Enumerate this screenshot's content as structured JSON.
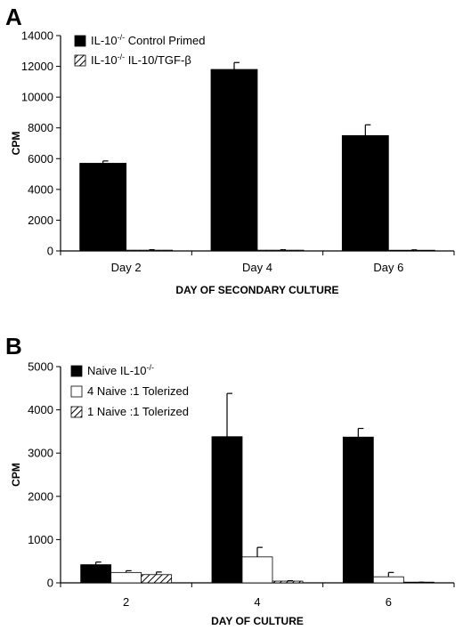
{
  "chart_data": [
    {
      "panel": "A",
      "type": "bar",
      "categories": [
        "Day 2",
        "Day 4",
        "Day 6"
      ],
      "series": [
        {
          "name": "IL-10-/- Control Primed",
          "label_main": "IL-10",
          "label_sup": "-/-",
          "label_rest": " Control Primed",
          "values": [
            5700,
            11800,
            7500
          ],
          "errors": [
            150,
            450,
            700
          ],
          "fill": "solid"
        },
        {
          "name": "IL-10-/- IL-10/TGF-β",
          "label_main": "IL-10",
          "label_sup": "-/-",
          "label_rest": "  IL-10/TGF-β",
          "values": [
            50,
            50,
            40
          ],
          "errors": [
            30,
            30,
            30
          ],
          "fill": "hatched"
        }
      ],
      "ylabel": "CPM",
      "xlabel": "DAY OF SECONDARY CULTURE",
      "ylim": [
        0,
        14000
      ],
      "yticks": [
        0,
        2000,
        4000,
        6000,
        8000,
        10000,
        12000,
        14000
      ],
      "grid": false,
      "legend": "top-left"
    },
    {
      "panel": "B",
      "type": "bar",
      "categories": [
        "2",
        "4",
        "6"
      ],
      "series": [
        {
          "name": "Naive IL-10-/-",
          "label_main": "Naive IL-10",
          "label_sup": "-/-",
          "label_rest": "",
          "values": [
            420,
            3380,
            3370
          ],
          "errors": [
            60,
            1000,
            200
          ],
          "fill": "solid"
        },
        {
          "name": "4 Naive :1 Tolerized",
          "label_main": "4 Naive :1 Tolerized",
          "label_sup": "",
          "label_rest": "",
          "values": [
            240,
            600,
            140
          ],
          "errors": [
            40,
            220,
            100
          ],
          "fill": "open"
        },
        {
          "name": "1 Naive :1 Tolerized",
          "label_main": "1 Naive :1 Tolerized",
          "label_sup": "",
          "label_rest": "",
          "values": [
            190,
            40,
            10
          ],
          "errors": [
            60,
            10,
            5
          ],
          "fill": "hatched"
        }
      ],
      "ylabel": "CPM",
      "xlabel": "DAY OF CULTURE",
      "ylim": [
        0,
        5000
      ],
      "yticks": [
        0,
        1000,
        2000,
        3000,
        4000,
        5000
      ],
      "grid": false,
      "legend": "top-left"
    }
  ]
}
